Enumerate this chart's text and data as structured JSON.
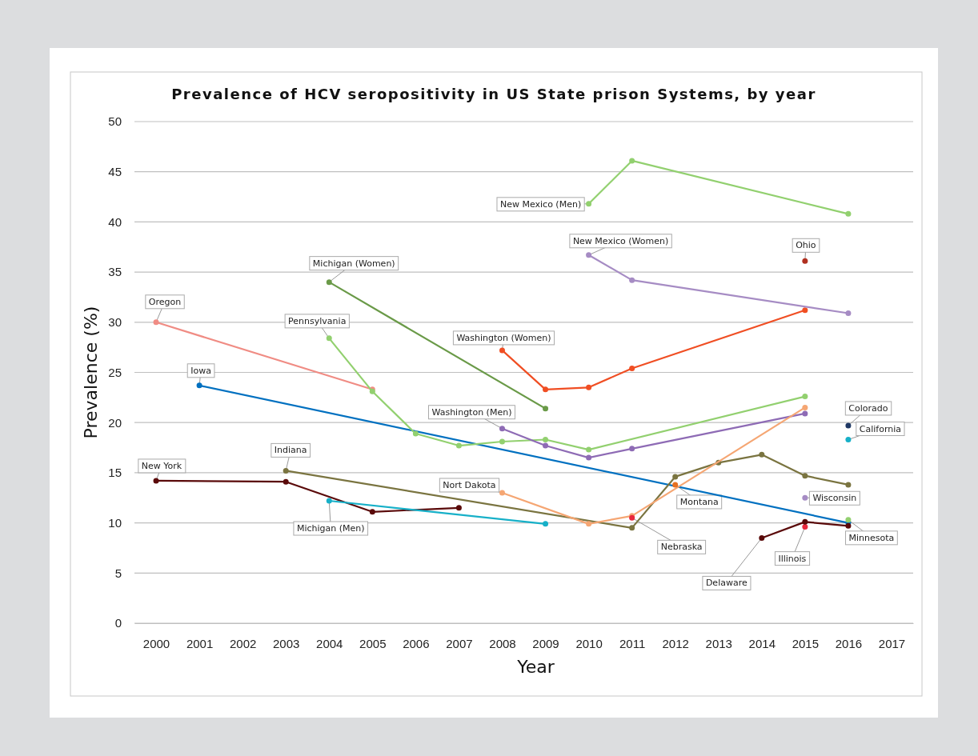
{
  "chart_data": {
    "type": "line",
    "title": "Prevalence of HCV seropositivity in US State prison Systems, by year",
    "xlabel": "Year",
    "ylabel": "Prevalence (%)",
    "xlim": [
      1999.5,
      2017.5
    ],
    "xticks": [
      2000,
      2001,
      2002,
      2003,
      2004,
      2005,
      2006,
      2007,
      2008,
      2009,
      2010,
      2011,
      2012,
      2013,
      2014,
      2015,
      2016,
      2017
    ],
    "ylim": [
      0,
      50
    ],
    "yticks": [
      0,
      5,
      10,
      15,
      20,
      25,
      30,
      35,
      40,
      45,
      50
    ],
    "grid": "y",
    "marker": "circle",
    "line_style": "solid",
    "series": [
      {
        "name": "Oregon",
        "color": "#f08c84",
        "x": [
          2000,
          2005
        ],
        "values": [
          30.0,
          23.3
        ]
      },
      {
        "name": "Iowa",
        "color": "#0070c0",
        "x": [
          2001,
          2016
        ],
        "values": [
          23.7,
          10.0
        ]
      },
      {
        "name": "Michigan (Women)",
        "color": "#6a9a48",
        "x": [
          2004,
          2009
        ],
        "values": [
          34.0,
          21.4
        ]
      },
      {
        "name": "Pennsylvania",
        "color": "#92d06f",
        "x": [
          2004,
          2005,
          2006,
          2007,
          2008,
          2009,
          2010,
          2015
        ],
        "values": [
          28.4,
          23.1,
          18.9,
          17.7,
          18.1,
          18.3,
          17.3,
          22.6
        ]
      },
      {
        "name": "New York",
        "color": "#5a0a0a",
        "x": [
          2000,
          2003,
          2005,
          2007
        ],
        "values": [
          14.2,
          14.1,
          11.1,
          11.5
        ]
      },
      {
        "name": "Indiana",
        "color": "#7a7440",
        "x": [
          2003,
          2011,
          2012,
          2013,
          2014,
          2015,
          2016
        ],
        "values": [
          15.2,
          9.5,
          14.6,
          16.0,
          16.8,
          14.7,
          13.8
        ]
      },
      {
        "name": "Michigan (Men)",
        "color": "#17b0c8",
        "x": [
          2004,
          2009
        ],
        "values": [
          12.2,
          9.9
        ]
      },
      {
        "name": "Washington (Women)",
        "color": "#f04e23",
        "x": [
          2008,
          2009,
          2010,
          2011,
          2015
        ],
        "values": [
          27.2,
          23.3,
          23.5,
          25.4,
          31.2
        ]
      },
      {
        "name": "Washington (Men)",
        "color": "#8e6bb5",
        "x": [
          2008,
          2009,
          2010,
          2011,
          2015
        ],
        "values": [
          19.4,
          17.7,
          16.5,
          17.4,
          20.9
        ]
      },
      {
        "name": "Nort Dakota",
        "color": "#f5a673",
        "x": [
          2008,
          2010,
          2011,
          2015
        ],
        "values": [
          13.0,
          9.9,
          10.7,
          21.5
        ]
      },
      {
        "name": "New Mexico (Men)",
        "color": "#92d06f",
        "x": [
          2010,
          2011,
          2016
        ],
        "values": [
          41.8,
          46.1,
          40.8
        ]
      },
      {
        "name": "New Mexico (Women)",
        "color": "#a68cc4",
        "x": [
          2010,
          2011,
          2016
        ],
        "values": [
          36.7,
          34.2,
          30.9
        ]
      },
      {
        "name": "Ohio",
        "color": "#b03020",
        "x": [
          2015
        ],
        "values": [
          36.1
        ]
      },
      {
        "name": "Colorado",
        "color": "#1f3864",
        "x": [
          2016
        ],
        "values": [
          19.7
        ]
      },
      {
        "name": "California",
        "color": "#17b0c8",
        "x": [
          2016
        ],
        "values": [
          18.3
        ]
      },
      {
        "name": "Montana",
        "color": "#e87020",
        "x": [
          2012
        ],
        "values": [
          13.8
        ]
      },
      {
        "name": "Nebraska",
        "color": "#e8283c",
        "x": [
          2011
        ],
        "values": [
          10.5
        ]
      },
      {
        "name": "Wisconsin",
        "color": "#a68cc4",
        "x": [
          2015
        ],
        "values": [
          12.5
        ]
      },
      {
        "name": "Minnesota",
        "color": "#92d06f",
        "x": [
          2016
        ],
        "values": [
          10.3
        ]
      },
      {
        "name": "Illinois",
        "color": "#e8283c",
        "x": [
          2015
        ],
        "values": [
          9.6
        ]
      },
      {
        "name": "Delaware",
        "color": "#5a0a0a",
        "x": [
          2014,
          2015,
          2016
        ],
        "values": [
          8.5,
          10.1,
          9.7
        ]
      }
    ]
  }
}
